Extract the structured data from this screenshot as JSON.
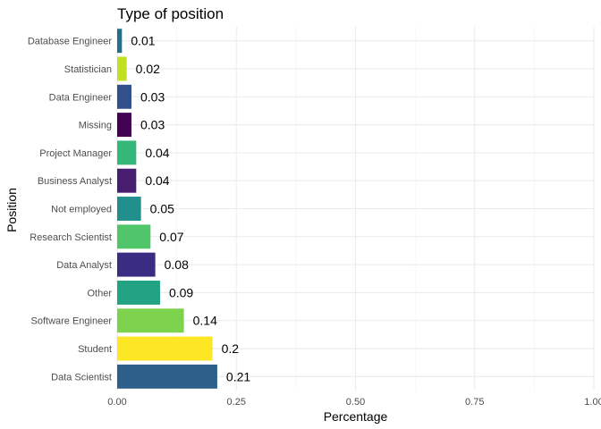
{
  "chart_data": {
    "type": "bar",
    "orientation": "horizontal",
    "title": "Type of position",
    "xlabel": "Percentage",
    "ylabel": "Position",
    "xlim": [
      0,
      1
    ],
    "xticks": [
      0,
      0.25,
      0.5,
      0.75,
      1
    ],
    "xtick_labels": [
      "0.00",
      "0.25",
      "0.50",
      "0.75",
      "1.00"
    ],
    "grid": true,
    "legend": "none",
    "categories": [
      "Database Engineer",
      "Statistician",
      "Data Engineer",
      "Missing",
      "Project Manager",
      "Business Analyst",
      "Not employed",
      "Research Scientist",
      "Data Analyst",
      "Other",
      "Software Engineer",
      "Student",
      "Data Scientist"
    ],
    "values": [
      0.01,
      0.02,
      0.03,
      0.03,
      0.04,
      0.04,
      0.05,
      0.07,
      0.08,
      0.09,
      0.14,
      0.2,
      0.21
    ],
    "value_labels": [
      "0.01",
      "0.02",
      "0.03",
      "0.03",
      "0.04",
      "0.04",
      "0.05",
      "0.07",
      "0.08",
      "0.09",
      "0.14",
      "0.2",
      "0.21"
    ],
    "colors": [
      "#21718d",
      "#c2df23",
      "#31518b",
      "#440154",
      "#35b779",
      "#471e6f",
      "#21908c",
      "#51c56a",
      "#3b2c83",
      "#22a384",
      "#7ed34e",
      "#fde725",
      "#2c5f8a"
    ]
  }
}
